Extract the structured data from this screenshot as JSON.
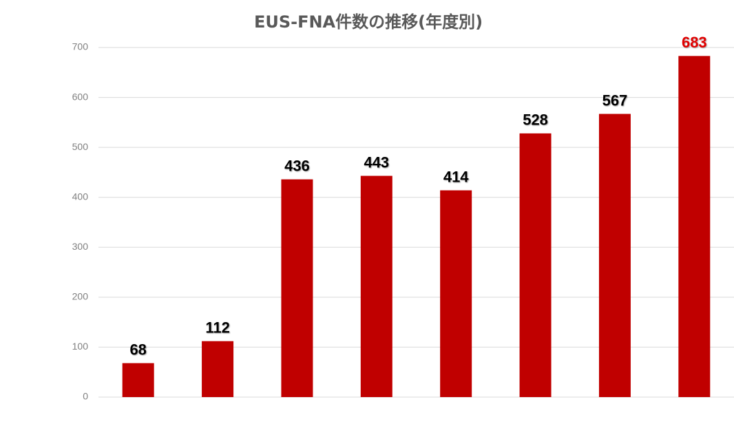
{
  "chart_data": {
    "type": "bar",
    "title": "EUS-FNA件数の推移(年度別)",
    "categories": [
      null,
      null,
      null,
      null,
      null,
      null,
      null,
      null
    ],
    "values": [
      68,
      112,
      436,
      443,
      414,
      528,
      567,
      683
    ],
    "color": "#c00000",
    "value_label_colors": [
      "#000000",
      "#000000",
      "#000000",
      "#000000",
      "#000000",
      "#000000",
      "#000000",
      "#e00000"
    ],
    "ylim": [
      0,
      700
    ],
    "yticks": [
      0,
      100,
      200,
      300,
      400,
      500,
      600,
      700
    ],
    "grid": true
  }
}
